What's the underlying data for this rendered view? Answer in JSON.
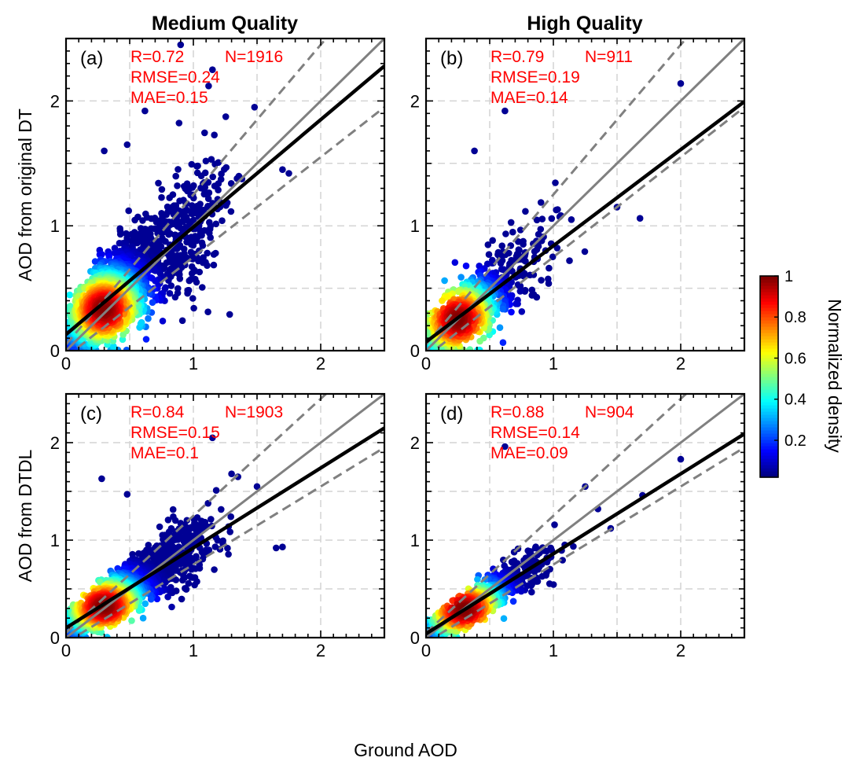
{
  "figure": {
    "column_titles": [
      "Medium Quality",
      "High Quality"
    ],
    "row_ylabels": [
      "AOD from original DT",
      "AOD from DTDL"
    ],
    "xlabel": "Ground AOD",
    "colorbar": {
      "label": "Normalized density",
      "ticks": [
        "0.2",
        "0.4",
        "0.6",
        "0.8",
        "1"
      ],
      "tick_values": [
        0.2,
        0.4,
        0.6,
        0.8,
        1.0
      ],
      "range": [
        0.02,
        1.0
      ],
      "colormap": "jet"
    },
    "stat_color": "#ff0000",
    "reference_line_color": "#808080",
    "fit_line_color": "#000000"
  },
  "chart_data": [
    {
      "type": "scatter",
      "panel_label": "(a)",
      "xlim": [
        0,
        2.5
      ],
      "ylim": [
        0,
        2.5
      ],
      "xticks": [
        0,
        1,
        2
      ],
      "yticks": [
        0,
        1,
        2
      ],
      "tick_labels": [
        "0",
        "1",
        "2"
      ],
      "grid": true,
      "stats": {
        "r": "R=0.72",
        "n": "N=1916",
        "rmse": "RMSE=0.24",
        "mae": "MAE=0.15"
      },
      "fit_line": {
        "slope": 0.86,
        "intercept": 0.13
      },
      "one_to_one": true,
      "envelope": {
        "offset": 0.05,
        "ratio": 0.2
      },
      "cloud": {
        "n": 1916,
        "center": [
          0.3,
          0.33
        ],
        "spread": 0.7,
        "noise": 0.3
      },
      "outliers": [
        [
          0.9,
          2.45
        ],
        [
          0.62,
          1.92
        ],
        [
          1.15,
          2.25
        ],
        [
          1.12,
          2.12
        ],
        [
          1.48,
          1.95
        ],
        [
          1.7,
          1.45
        ],
        [
          1.75,
          1.42
        ],
        [
          0.3,
          1.6
        ],
        [
          0.48,
          1.65
        ]
      ]
    },
    {
      "type": "scatter",
      "panel_label": "(b)",
      "xlim": [
        0,
        2.5
      ],
      "ylim": [
        0,
        2.5
      ],
      "xticks": [
        0,
        1,
        2
      ],
      "yticks": [
        0,
        1,
        2
      ],
      "tick_labels": [
        "0",
        "1",
        "2"
      ],
      "grid": true,
      "stats": {
        "r": "R=0.79",
        "n": "N=911",
        "rmse": "RMSE=0.19",
        "mae": "MAE=0.14"
      },
      "fit_line": {
        "slope": 0.77,
        "intercept": 0.07
      },
      "one_to_one": true,
      "envelope": {
        "offset": 0.05,
        "ratio": 0.2
      },
      "cloud": {
        "n": 911,
        "center": [
          0.25,
          0.25
        ],
        "spread": 0.55,
        "noise": 0.24
      },
      "outliers": [
        [
          2.0,
          2.14
        ],
        [
          0.62,
          1.92
        ],
        [
          0.38,
          1.6
        ],
        [
          1.68,
          1.06
        ],
        [
          1.5,
          1.15
        ]
      ]
    },
    {
      "type": "scatter",
      "panel_label": "(c)",
      "xlim": [
        0,
        2.5
      ],
      "ylim": [
        0,
        2.5
      ],
      "xticks": [
        0,
        1,
        2
      ],
      "yticks": [
        0,
        1,
        2
      ],
      "tick_labels": [
        "0",
        "1",
        "2"
      ],
      "grid": true,
      "stats": {
        "r": "R=0.84",
        "n": "N=1903",
        "rmse": "RMSE=0.15",
        "mae": "MAE=0.1"
      },
      "fit_line": {
        "slope": 0.82,
        "intercept": 0.1
      },
      "one_to_one": true,
      "envelope": {
        "offset": 0.05,
        "ratio": 0.2
      },
      "cloud": {
        "n": 1903,
        "center": [
          0.3,
          0.32
        ],
        "spread": 0.65,
        "noise": 0.2
      },
      "outliers": [
        [
          1.15,
          2.05
        ],
        [
          0.28,
          1.63
        ],
        [
          0.48,
          1.47
        ],
        [
          1.3,
          1.68
        ],
        [
          1.35,
          1.65
        ],
        [
          1.7,
          0.93
        ],
        [
          1.65,
          0.92
        ],
        [
          1.5,
          1.55
        ]
      ]
    },
    {
      "type": "scatter",
      "panel_label": "(d)",
      "xlim": [
        0,
        2.5
      ],
      "ylim": [
        0,
        2.5
      ],
      "xticks": [
        0,
        1,
        2
      ],
      "yticks": [
        0,
        1,
        2
      ],
      "tick_labels": [
        "0",
        "1",
        "2"
      ],
      "grid": true,
      "stats": {
        "r": "R=0.88",
        "n": "N=904",
        "rmse": "RMSE=0.14",
        "mae": "MAE=0.09"
      },
      "fit_line": {
        "slope": 0.82,
        "intercept": 0.04
      },
      "one_to_one": true,
      "envelope": {
        "offset": 0.05,
        "ratio": 0.2
      },
      "cloud": {
        "n": 904,
        "center": [
          0.3,
          0.29
        ],
        "spread": 0.5,
        "noise": 0.15
      },
      "outliers": [
        [
          0.62,
          1.96
        ],
        [
          2.0,
          1.83
        ],
        [
          1.7,
          1.46
        ],
        [
          1.25,
          1.55
        ],
        [
          1.35,
          1.32
        ],
        [
          1.45,
          1.12
        ]
      ]
    }
  ]
}
